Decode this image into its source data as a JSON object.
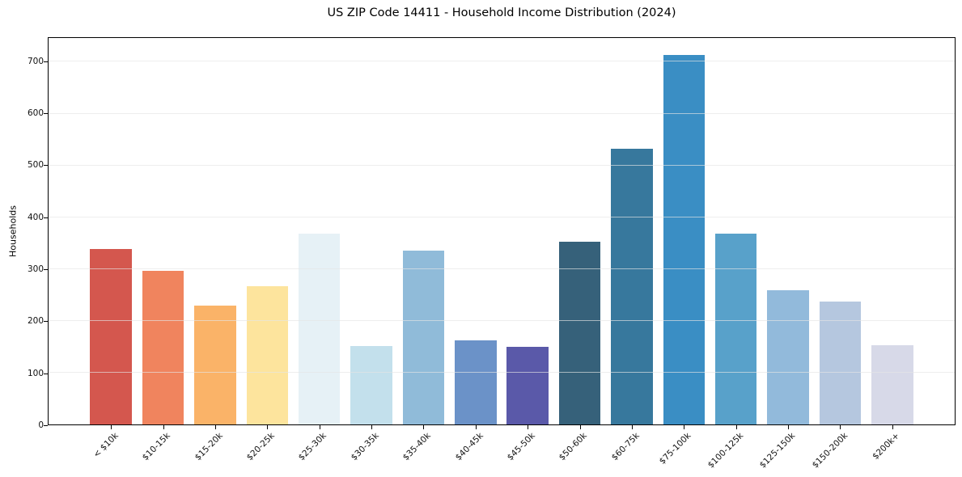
{
  "title": "US ZIP Code 14411 - Household Income Distribution (2024)",
  "chart_data": {
    "type": "bar",
    "title": "US ZIP Code 14411 - Household Income Distribution (2024)",
    "xlabel": "",
    "ylabel": "Households",
    "categories": [
      "< $10k",
      "$10-15k",
      "$15-20k",
      "$20-25k",
      "$25-30k",
      "$30-35k",
      "$35-40k",
      "$40-45k",
      "$45-50k",
      "$50-60k",
      "$60-75k",
      "$75-100k",
      "$100-125k",
      "$125-150k",
      "$150-200k",
      "$200k+"
    ],
    "values": [
      338,
      296,
      229,
      267,
      369,
      151,
      336,
      162,
      150,
      352,
      532,
      713,
      369,
      259,
      238,
      153
    ],
    "bar_colors": [
      "#d4574e",
      "#f0845e",
      "#fab368",
      "#fde49d",
      "#e6f1f6",
      "#c3e0ec",
      "#90bbd9",
      "#6b92c8",
      "#5a59a9",
      "#36617a",
      "#37789d",
      "#3a8ec4",
      "#58a1ca",
      "#92badb",
      "#b5c7df",
      "#d7d9e8"
    ],
    "yticks": [
      0,
      100,
      200,
      300,
      400,
      500,
      600,
      700
    ],
    "ylim": [
      0,
      746
    ],
    "grid": "horizontal",
    "grid_color": "#e5e5e5",
    "legend": "none",
    "x_tick_rotation_deg": 45
  }
}
